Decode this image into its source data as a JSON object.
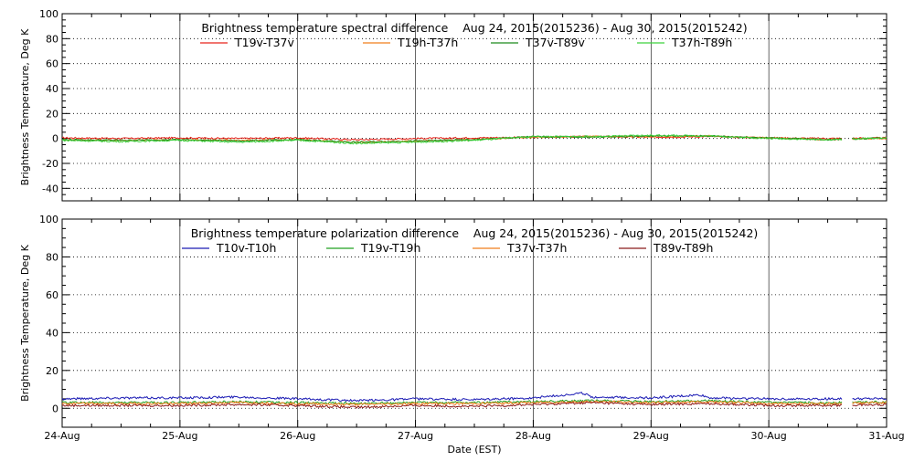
{
  "chart_data": [
    {
      "type": "line",
      "title": "Brightness temperature spectral difference    Aug 24, 2015(2015236) - Aug 30, 2015(2015242)",
      "ylabel": "Brightness Temperature, Deg K",
      "xlabel": "",
      "ylim": [
        -50,
        100
      ],
      "yticks": [
        -40,
        -20,
        0,
        20,
        40,
        60,
        80,
        100
      ],
      "xlim": [
        "2015-08-24",
        "2015-08-31"
      ],
      "xticks": [],
      "grid": true,
      "legend_placement": "top",
      "series": [
        {
          "name": "T19v-T37v",
          "color": "#e8231b",
          "x": [
            "2015-08-24T00:00",
            "2015-08-24T12:00",
            "2015-08-25T00:00",
            "2015-08-25T12:00",
            "2015-08-26T00:00",
            "2015-08-26T12:00",
            "2015-08-27T00:00",
            "2015-08-27T12:00",
            "2015-08-28T00:00",
            "2015-08-28T12:00",
            "2015-08-29T00:00",
            "2015-08-29T12:00",
            "2015-08-30T00:00",
            "2015-08-30T12:00",
            "2015-08-31T00:00"
          ],
          "values": [
            0.5,
            0,
            0.5,
            0,
            0.5,
            -1,
            0,
            0.5,
            1,
            1.5,
            1,
            1.5,
            0.5,
            0,
            0.5
          ]
        },
        {
          "name": "T19h-T37h",
          "color": "#f07d1a",
          "x": [
            "2015-08-24T00:00",
            "2015-08-24T12:00",
            "2015-08-25T00:00",
            "2015-08-25T12:00",
            "2015-08-26T00:00",
            "2015-08-26T12:00",
            "2015-08-27T00:00",
            "2015-08-27T12:00",
            "2015-08-28T00:00",
            "2015-08-28T12:00",
            "2015-08-29T00:00",
            "2015-08-29T12:00",
            "2015-08-30T00:00",
            "2015-08-30T12:00",
            "2015-08-31T00:00"
          ],
          "values": [
            -1,
            -1.5,
            -1,
            -1.5,
            -1,
            -3,
            -2,
            -1,
            1,
            1.5,
            1.5,
            2,
            0.5,
            -1,
            0
          ]
        },
        {
          "name": "T37v-T89v",
          "color": "#1c8a1c",
          "x": [
            "2015-08-24T00:00",
            "2015-08-24T12:00",
            "2015-08-25T00:00",
            "2015-08-25T12:00",
            "2015-08-26T00:00",
            "2015-08-26T12:00",
            "2015-08-27T00:00",
            "2015-08-27T12:00",
            "2015-08-28T00:00",
            "2015-08-28T12:00",
            "2015-08-29T00:00",
            "2015-08-29T12:00",
            "2015-08-30T00:00",
            "2015-08-30T12:00",
            "2015-08-31T00:00"
          ],
          "values": [
            -1,
            -1.5,
            -1,
            -2,
            -1,
            -3,
            -2,
            -1,
            1.5,
            1,
            2,
            2,
            0.5,
            -1,
            0.5
          ]
        },
        {
          "name": "T37h-T89h",
          "color": "#3cd23c",
          "x": [
            "2015-08-24T00:00",
            "2015-08-24T12:00",
            "2015-08-25T00:00",
            "2015-08-25T12:00",
            "2015-08-26T00:00",
            "2015-08-26T12:00",
            "2015-08-27T00:00",
            "2015-08-27T12:00",
            "2015-08-28T00:00",
            "2015-08-28T12:00",
            "2015-08-29T00:00",
            "2015-08-29T12:00",
            "2015-08-30T00:00",
            "2015-08-30T12:00",
            "2015-08-31T00:00"
          ],
          "values": [
            -1.5,
            -2.5,
            -1.5,
            -3,
            -1.5,
            -4,
            -3,
            -1.5,
            1.5,
            1.5,
            2.5,
            2,
            0,
            -1,
            0.5
          ]
        }
      ]
    },
    {
      "type": "line",
      "title": "Brightness temperature polarization difference    Aug 24, 2015(2015236) - Aug 30, 2015(2015242)",
      "ylabel": "Brightness Temperature, Deg K",
      "xlabel": "Date (EST)",
      "ylim": [
        -10,
        100
      ],
      "yticks": [
        0,
        20,
        40,
        60,
        80,
        100
      ],
      "xlim": [
        "2015-08-24",
        "2015-08-31"
      ],
      "xticks": [
        "24-Aug",
        "25-Aug",
        "26-Aug",
        "27-Aug",
        "28-Aug",
        "29-Aug",
        "30-Aug",
        "31-Aug"
      ],
      "grid": true,
      "legend_placement": "top",
      "series": [
        {
          "name": "T10v-T10h",
          "color": "#1a1ab4",
          "x": [
            "2015-08-24T00:00",
            "2015-08-24T12:00",
            "2015-08-25T00:00",
            "2015-08-25T12:00",
            "2015-08-26T00:00",
            "2015-08-26T12:00",
            "2015-08-27T00:00",
            "2015-08-27T12:00",
            "2015-08-28T00:00",
            "2015-08-28T10:00",
            "2015-08-28T12:00",
            "2015-08-29T00:00",
            "2015-08-29T10:00",
            "2015-08-29T12:00",
            "2015-08-30T00:00",
            "2015-08-30T12:00",
            "2015-08-31T00:00"
          ],
          "values": [
            5,
            5.5,
            5.5,
            6,
            5,
            4,
            5,
            4.5,
            5.5,
            8,
            6,
            5.5,
            7,
            5.5,
            5,
            5,
            5
          ]
        },
        {
          "name": "T19v-T19h",
          "color": "#22a022",
          "x": [
            "2015-08-24T00:00",
            "2015-08-24T12:00",
            "2015-08-25T00:00",
            "2015-08-25T12:00",
            "2015-08-26T00:00",
            "2015-08-26T12:00",
            "2015-08-27T00:00",
            "2015-08-27T12:00",
            "2015-08-28T00:00",
            "2015-08-28T12:00",
            "2015-08-29T00:00",
            "2015-08-29T12:00",
            "2015-08-30T00:00",
            "2015-08-30T12:00",
            "2015-08-31T00:00"
          ],
          "values": [
            3,
            3,
            3,
            3.5,
            3,
            2.5,
            3,
            3,
            3.5,
            4,
            3.5,
            4,
            3,
            3,
            3.5
          ]
        },
        {
          "name": "T37v-T37h",
          "color": "#f07d1a",
          "x": [
            "2015-08-24T00:00",
            "2015-08-24T12:00",
            "2015-08-25T00:00",
            "2015-08-25T12:00",
            "2015-08-26T00:00",
            "2015-08-26T12:00",
            "2015-08-27T00:00",
            "2015-08-27T12:00",
            "2015-08-28T00:00",
            "2015-08-28T12:00",
            "2015-08-29T00:00",
            "2015-08-29T12:00",
            "2015-08-30T00:00",
            "2015-08-30T12:00",
            "2015-08-31T00:00"
          ],
          "values": [
            2.5,
            2.5,
            2.5,
            3,
            2.5,
            2,
            2.5,
            2.5,
            3,
            3.5,
            3,
            3.5,
            2.5,
            2.5,
            3
          ]
        },
        {
          "name": "T89v-T89h",
          "color": "#8b1a1a",
          "x": [
            "2015-08-24T00:00",
            "2015-08-24T12:00",
            "2015-08-25T00:00",
            "2015-08-25T12:00",
            "2015-08-26T00:00",
            "2015-08-26T12:00",
            "2015-08-27T00:00",
            "2015-08-27T12:00",
            "2015-08-28T00:00",
            "2015-08-28T12:00",
            "2015-08-29T00:00",
            "2015-08-29T12:00",
            "2015-08-30T00:00",
            "2015-08-30T12:00",
            "2015-08-31T00:00"
          ],
          "values": [
            1.5,
            1.5,
            1.5,
            2,
            1.5,
            0.5,
            1.5,
            1,
            2,
            3,
            2,
            2.5,
            1.5,
            1.5,
            2
          ]
        }
      ]
    }
  ]
}
